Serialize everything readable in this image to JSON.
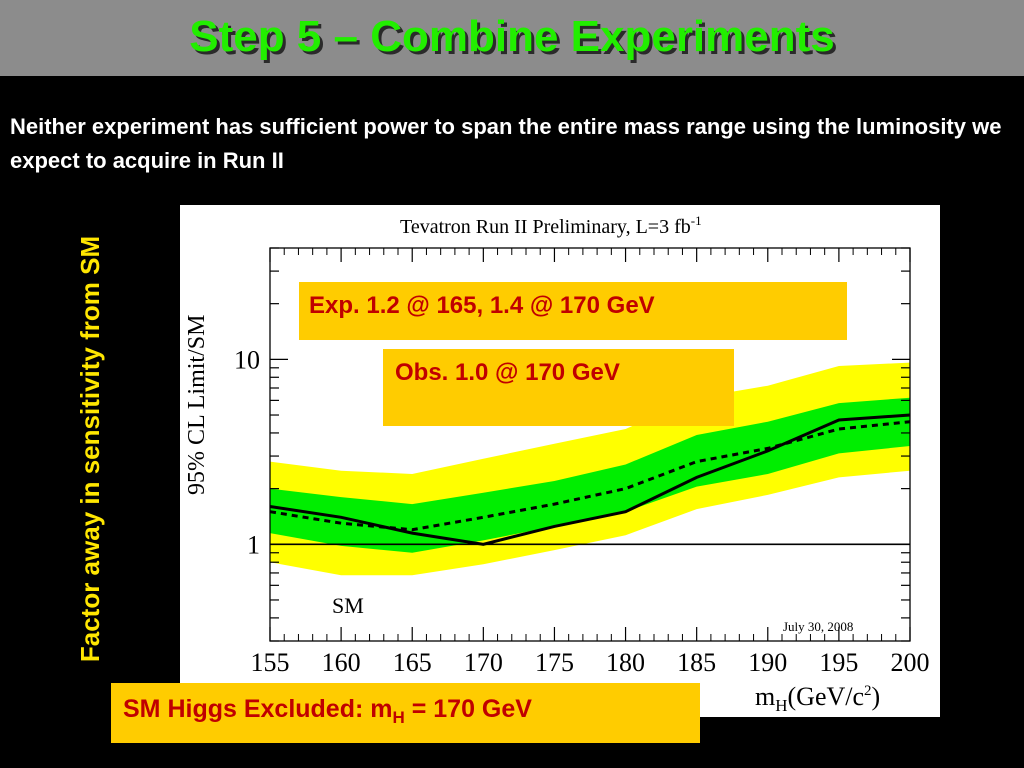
{
  "slide": {
    "title": "Step 5 – Combine Experiments",
    "intro": "Neither experiment has sufficient power to span the entire mass range using the luminosity we expect to acquire in Run II",
    "side_label": "Factor away in sensitivity from SM"
  },
  "callouts": {
    "expected": "Exp. 1.2 @ 165, 1.4 @ 170 GeV",
    "observed": "Obs. 1.0 @ 170 GeV",
    "sm_prefix": "SM Higgs Excluded: m",
    "sm_sub": "H",
    "sm_suffix": " = 170 GeV"
  },
  "colors": {
    "band_2sigma": "#ffff00",
    "band_1sigma": "#00ee00",
    "observed": "#000000",
    "expected": "#000000",
    "callout_bg": "#ffcc00",
    "callout_text": "#c00000",
    "title": "#22ee00"
  },
  "chart_data": {
    "type": "line",
    "title": "Tevatron Run II Preliminary, L=3 fb",
    "title_sup": "-1",
    "ylabel": "95% CL Limit/SM",
    "xlabel": "m",
    "xlabel_sub": "H",
    "xlabel_unit": "(GeV/c",
    "xlabel_unit_sup": "2",
    "xlabel_unit_end": ")",
    "date_note": "July 30, 2008",
    "sm_label": "SM",
    "xlim": [
      155,
      200
    ],
    "ylim": [
      0.3,
      40
    ],
    "yscale": "log",
    "x_ticks": [
      155,
      160,
      165,
      170,
      175,
      180,
      185,
      190,
      195,
      200
    ],
    "y_ticks": [
      1,
      10
    ],
    "x": [
      155,
      160,
      165,
      170,
      175,
      180,
      185,
      190,
      195,
      200
    ],
    "series": [
      {
        "name": "Observed",
        "style": "solid",
        "values": [
          1.6,
          1.4,
          1.15,
          1.0,
          1.25,
          1.5,
          2.3,
          3.2,
          4.7,
          5.0
        ]
      },
      {
        "name": "Expected",
        "style": "dashed",
        "values": [
          1.5,
          1.3,
          1.2,
          1.4,
          1.65,
          2.0,
          2.8,
          3.3,
          4.2,
          4.6
        ]
      },
      {
        "name": "SM",
        "style": "solid",
        "values": [
          1,
          1,
          1,
          1,
          1,
          1,
          1,
          1,
          1,
          1
        ]
      }
    ],
    "band_1sigma": {
      "lower": [
        1.15,
        0.98,
        0.9,
        1.05,
        1.25,
        1.5,
        2.05,
        2.4,
        3.1,
        3.4
      ],
      "upper": [
        2.0,
        1.8,
        1.65,
        1.9,
        2.2,
        2.7,
        3.9,
        4.6,
        5.8,
        6.2
      ]
    },
    "band_2sigma": {
      "lower": [
        0.8,
        0.68,
        0.68,
        0.78,
        0.93,
        1.12,
        1.55,
        1.85,
        2.3,
        2.5
      ],
      "upper": [
        2.8,
        2.5,
        2.4,
        2.9,
        3.5,
        4.2,
        6.2,
        7.2,
        9.2,
        9.6
      ]
    }
  }
}
